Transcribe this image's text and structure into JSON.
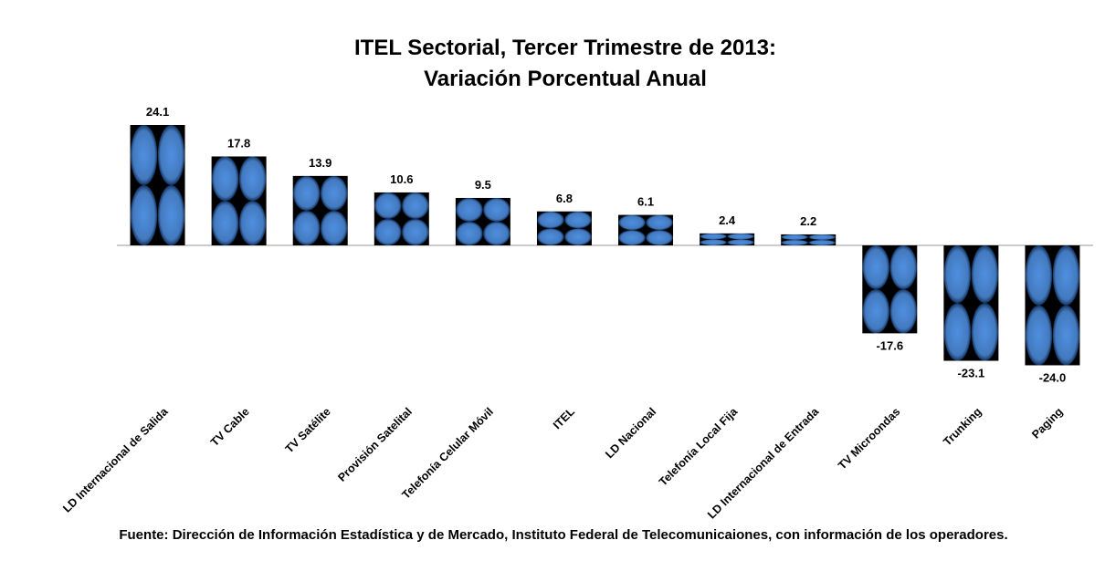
{
  "chart_data": {
    "type": "bar",
    "title": "ITEL Sectorial, Tercer Trimestre de 2013:",
    "subtitle": "Variación Porcentual Anual",
    "categories": [
      "LD Internacional de Salida",
      "TV Cable",
      "TV Satélite",
      "Provisión Satelital",
      "Telefonía Celular Móvil",
      "ITEL",
      "LD Nacional",
      "Telefonía Local Fija",
      "LD Internacional de Entrada",
      "TV Microondas",
      "Trunking",
      "Paging"
    ],
    "values": [
      24.1,
      17.8,
      13.9,
      10.6,
      9.5,
      6.8,
      6.1,
      2.4,
      2.2,
      -17.6,
      -23.1,
      -24.0
    ],
    "value_labels": [
      "24.1",
      "17.8",
      "13.9",
      "10.6",
      "9.5",
      "6.8",
      "6.1",
      "2.4",
      "2.2",
      "-17.6",
      "-23.1",
      "-24.0"
    ],
    "color": "#4f8fe0",
    "source": "Fuente: Dirección de Información Estadística y de Mercado, Instituto Federal de Telecomunicaiones, con información de los operadores."
  }
}
